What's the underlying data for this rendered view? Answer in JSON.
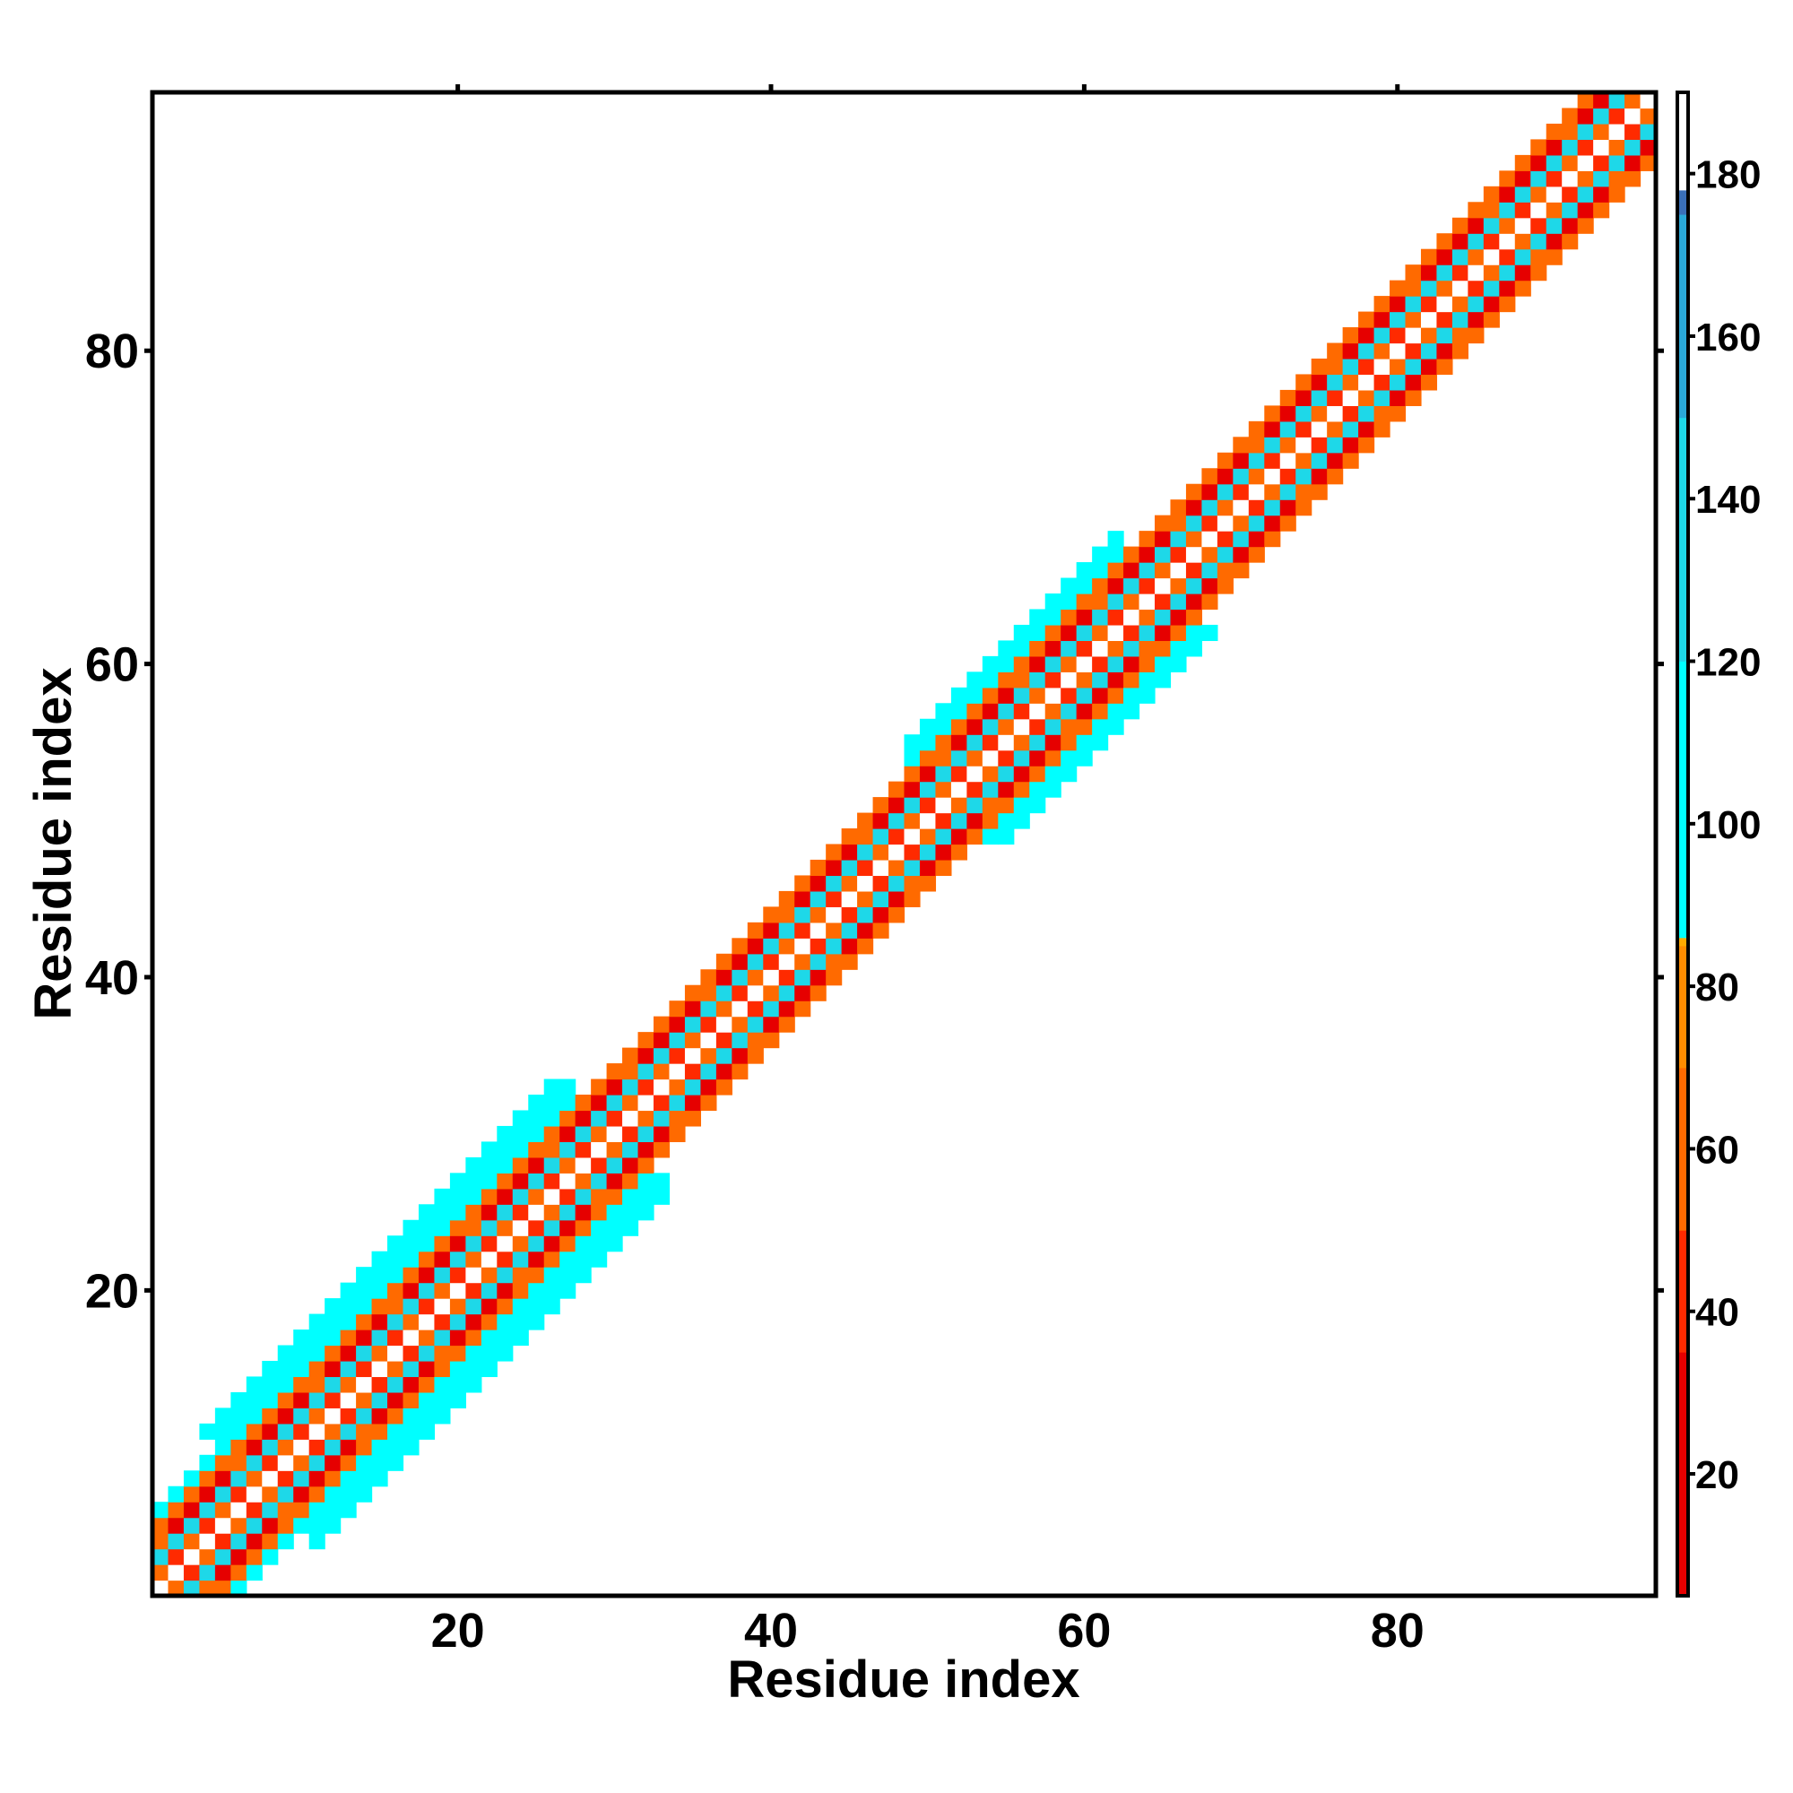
{
  "chart_data": {
    "type": "heatmap",
    "title": "",
    "xlabel": "Residue index",
    "ylabel": "Residue index",
    "xlim": [
      1,
      96
    ],
    "ylim": [
      1,
      96
    ],
    "x_ticks": [
      20,
      40,
      60,
      80
    ],
    "y_ticks": [
      20,
      40,
      60,
      80
    ],
    "x_tick_labels": [
      "20",
      "40",
      "60",
      "80"
    ],
    "y_tick_labels": [
      "20",
      "40",
      "60",
      "80"
    ],
    "colorbar": {
      "min": 5,
      "max": 190,
      "ticks": [
        20,
        40,
        60,
        80,
        100,
        120,
        140,
        160,
        180
      ],
      "tick_labels": [
        "20",
        "40",
        "60",
        "80",
        "100",
        "120",
        "140",
        "160",
        "180"
      ],
      "color_stops": [
        {
          "value": 5,
          "color": "#e60000"
        },
        {
          "value": 35,
          "color": "#ff2a00"
        },
        {
          "value": 50,
          "color": "#ff6a00"
        },
        {
          "value": 70,
          "color": "#ff8c00"
        },
        {
          "value": 85,
          "color": "#ffaa00"
        },
        {
          "value": 86,
          "color": "#00ffff"
        },
        {
          "value": 120,
          "color": "#1ed8e8"
        },
        {
          "value": 150,
          "color": "#2aa8d8"
        },
        {
          "value": 175,
          "color": "#3a6fb8"
        },
        {
          "value": 178,
          "color": "#ffffff"
        },
        {
          "value": 190,
          "color": "#ffffff"
        }
      ]
    },
    "grid": false,
    "legend": "colorbar-right",
    "description": "Symmetric contact map of angle values between residues; nonzero cells only along diagonal band |i-j| <= 7 (wider helical bands in 1-30 and 52-65).",
    "band_segments": [
      {
        "residues": [
          1,
          7
        ],
        "max_offset": 5
      },
      {
        "residues": [
          8,
          30
        ],
        "max_offset": 7
      },
      {
        "residues": [
          31,
          51
        ],
        "max_offset": 4
      },
      {
        "residues": [
          52,
          65
        ],
        "max_offset": 6
      },
      {
        "residues": [
          66,
          96
        ],
        "max_offset": 4
      }
    ],
    "value_by_offset": [
      {
        "offset": 0,
        "value": 190
      },
      {
        "offset": 1,
        "value": 60
      },
      {
        "offset": 2,
        "value": 120
      },
      {
        "offset": 3,
        "value": 20
      },
      {
        "offset": 4,
        "value": 60
      },
      {
        "offset": 5,
        "value": 110
      },
      {
        "offset": 6,
        "value": 110
      },
      {
        "offset": 7,
        "value": 95
      }
    ]
  }
}
